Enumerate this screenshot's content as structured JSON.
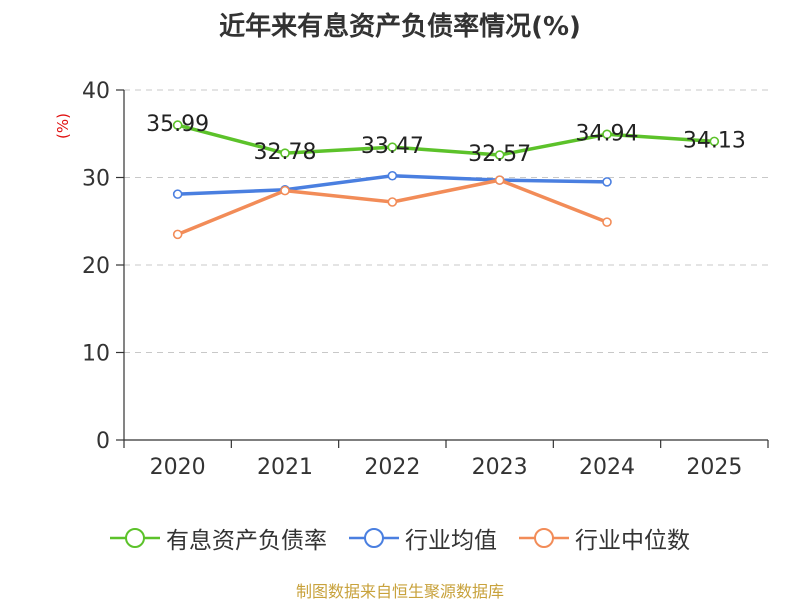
{
  "title": "近年来有息资产负债率情况(%)",
  "source": "制图数据来自恒生聚源数据库",
  "colors": {
    "series1": "#5cc22a",
    "series2": "#4a7fe0",
    "series3": "#f28c58"
  },
  "chart_data": {
    "type": "line",
    "ylabel": "(%)",
    "ylim": [
      0,
      40
    ],
    "yticks": [
      "0",
      "10",
      "20",
      "30",
      "40"
    ],
    "grid": true,
    "legend_position": "bottom",
    "categories": [
      "2020",
      "2021",
      "2022",
      "2023",
      "2024",
      "2025"
    ],
    "series": [
      {
        "name": "有息资产负债率",
        "values": [
          35.99,
          32.78,
          33.47,
          32.57,
          34.94,
          34.13
        ],
        "labels": [
          "35.99",
          "32.78",
          "33.47",
          "32.57",
          "34.94",
          "34.13"
        ]
      },
      {
        "name": "行业均值",
        "values": [
          28.1,
          28.6,
          30.2,
          29.7,
          29.5,
          null
        ]
      },
      {
        "name": "行业中位数",
        "values": [
          23.5,
          28.5,
          27.2,
          29.7,
          24.9,
          null
        ]
      }
    ]
  }
}
